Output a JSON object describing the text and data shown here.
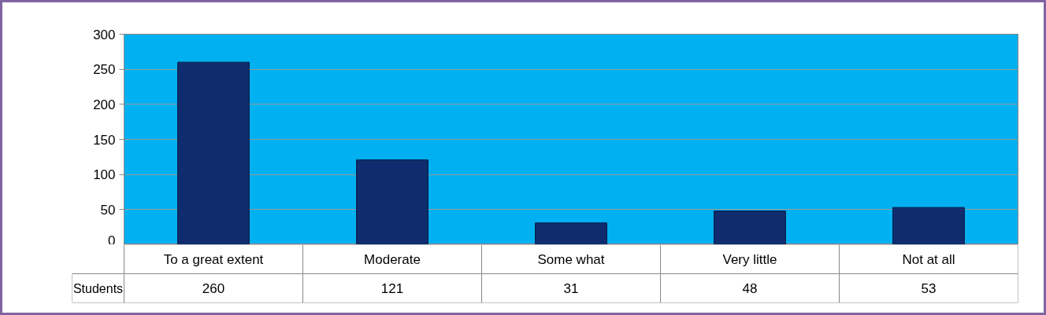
{
  "chart_data": {
    "type": "bar",
    "categories": [
      "To a great extent",
      "Moderate",
      "Some what",
      "Very little",
      "Not at all"
    ],
    "series": [
      {
        "name": "Students",
        "color": "#0f2d6e",
        "values": [
          260,
          121,
          31,
          48,
          53
        ]
      }
    ],
    "ylim": [
      0,
      300
    ],
    "yticks": [
      0,
      50,
      100,
      150,
      200,
      250,
      300
    ],
    "grid": "y",
    "data_labels": true
  }
}
